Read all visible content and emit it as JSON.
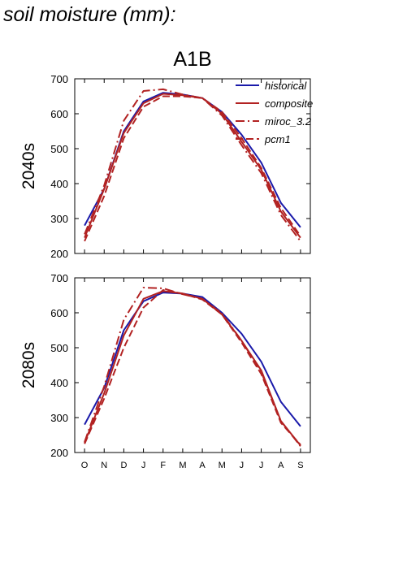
{
  "title": "soil moisture (mm):",
  "chart_data": {
    "type": "line",
    "scenario": "A1B",
    "x": [
      "O",
      "N",
      "D",
      "J",
      "F",
      "M",
      "A",
      "M",
      "J",
      "J",
      "A",
      "S"
    ],
    "ylim": [
      200,
      700
    ],
    "yticks": [
      200,
      300,
      400,
      500,
      600,
      700
    ],
    "grid": false,
    "legend_position": "top-right",
    "legend": [
      {
        "name": "historical",
        "color": "#1a1aaa",
        "style": "solid"
      },
      {
        "name": "composite",
        "color": "#b22222",
        "style": "solid"
      },
      {
        "name": "miroc_3.2",
        "color": "#b22222",
        "style": "dashdot"
      },
      {
        "name": "pcm1",
        "color": "#b22222",
        "style": "dashed"
      }
    ],
    "panels": [
      {
        "label": "2040s",
        "series": [
          {
            "name": "historical",
            "values": [
              280,
              385,
              550,
              635,
              660,
              655,
              645,
              605,
              540,
              460,
              345,
              275
            ]
          },
          {
            "name": "composite",
            "values": [
              245,
              385,
              545,
              630,
              657,
              653,
              645,
              600,
              520,
              440,
              320,
              245
            ]
          },
          {
            "name": "miroc_3.2",
            "values": [
              255,
              395,
              580,
              665,
              670,
              655,
              645,
              595,
              510,
              430,
              310,
              235
            ]
          },
          {
            "name": "pcm1",
            "values": [
              235,
              365,
              530,
              620,
              650,
              650,
              645,
              605,
              530,
              445,
              330,
              250
            ]
          }
        ]
      },
      {
        "label": "2080s",
        "series": [
          {
            "name": "historical",
            "values": [
              280,
              385,
              550,
              633,
              658,
              655,
              645,
              600,
              540,
              460,
              345,
              275
            ]
          },
          {
            "name": "composite",
            "values": [
              228,
              370,
              535,
              640,
              662,
              655,
              640,
              595,
              520,
              435,
              290,
              220
            ]
          },
          {
            "name": "miroc_3.2",
            "values": [
              230,
              390,
              580,
              672,
              670,
              653,
              640,
              598,
              520,
              430,
              290,
              218
            ]
          },
          {
            "name": "pcm1",
            "values": [
              225,
              355,
              500,
              615,
              665,
              655,
              638,
              595,
              515,
              425,
              285,
              222
            ]
          }
        ]
      }
    ]
  }
}
